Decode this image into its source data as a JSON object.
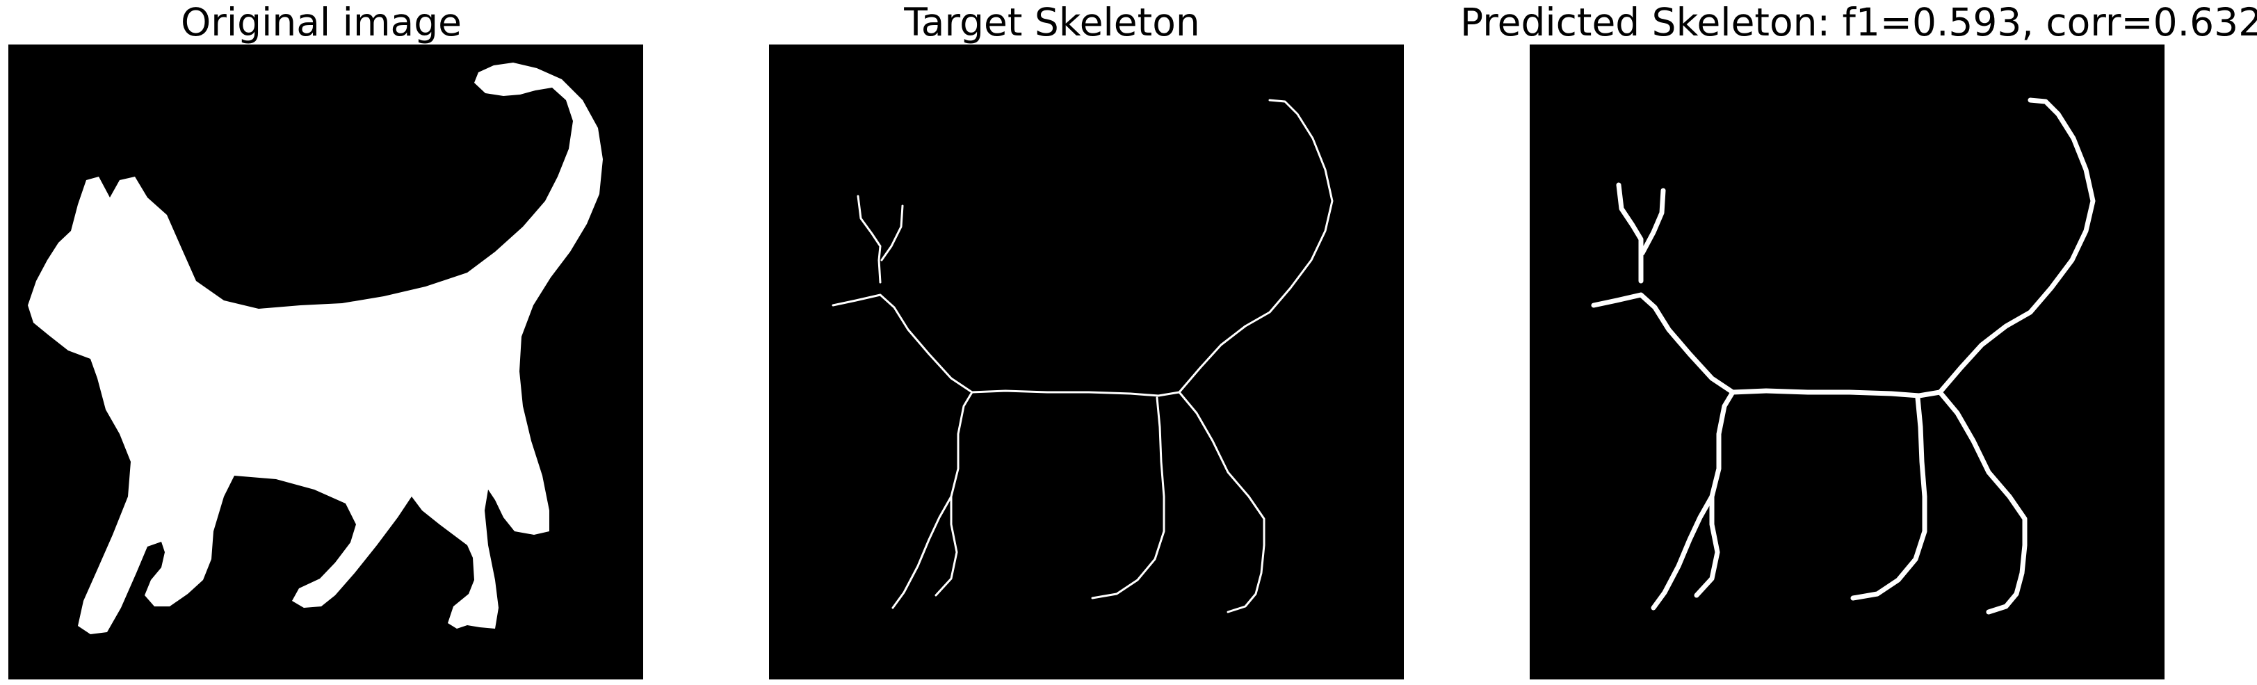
{
  "figure": {
    "background_color": "#ffffff",
    "canvas_color": "#000000",
    "foreground_color": "#ffffff"
  },
  "panels": [
    {
      "title": "Original image",
      "content": "cat silhouette mask"
    },
    {
      "title": "Target Skeleton",
      "content": "thin skeleton lines"
    },
    {
      "title": "Predicted Skeleton: f1=0.593, corr=0.632",
      "content": "predicted skeleton lines"
    }
  ]
}
